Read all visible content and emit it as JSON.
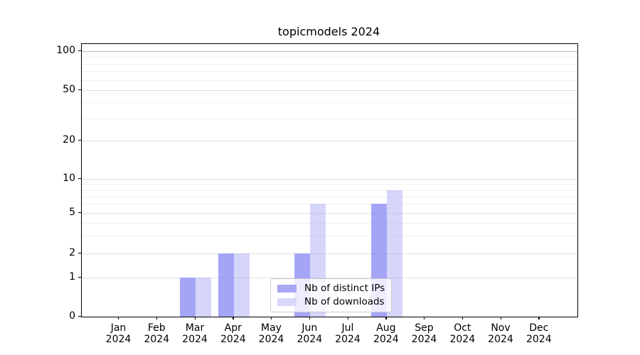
{
  "chart_data": {
    "type": "bar",
    "title": "topicmodels 2024",
    "categories": [
      "Jan",
      "Feb",
      "Mar",
      "Apr",
      "May",
      "Jun",
      "Jul",
      "Aug",
      "Sep",
      "Oct",
      "Nov",
      "Dec"
    ],
    "year_label": "2024",
    "series": [
      {
        "name": "Nb of distinct IPs",
        "color": "rgba(130,130,245,0.72)",
        "solid_color": "#a8a8f5",
        "values": [
          0,
          0,
          1,
          2,
          0,
          2,
          0,
          6,
          0,
          0,
          0,
          0
        ]
      },
      {
        "name": "Nb of downloads",
        "color": "rgba(165,165,245,0.45)",
        "solid_color": "#d8d8f8",
        "values": [
          0,
          0,
          1,
          2,
          0,
          6,
          0,
          8,
          0,
          0,
          0,
          0
        ]
      }
    ],
    "yticks": [
      0,
      1,
      2,
      5,
      10,
      20,
      50,
      100
    ],
    "minor_gridline_values": [
      3,
      4,
      6,
      7,
      8,
      9,
      30,
      40,
      60,
      70,
      80,
      90
    ],
    "ylim": [
      0,
      110
    ],
    "yscale": "symlog-like (linear 0-1, log above)",
    "xlabel": "",
    "ylabel": "",
    "grid": true,
    "legend_position": "inside lower-center",
    "colors": {
      "grid_major": "#e0e0e0",
      "grid_minor": "#f0f0f0",
      "grid_top": "#b5b5b5",
      "spine": "#000000",
      "background": "#ffffff"
    }
  }
}
